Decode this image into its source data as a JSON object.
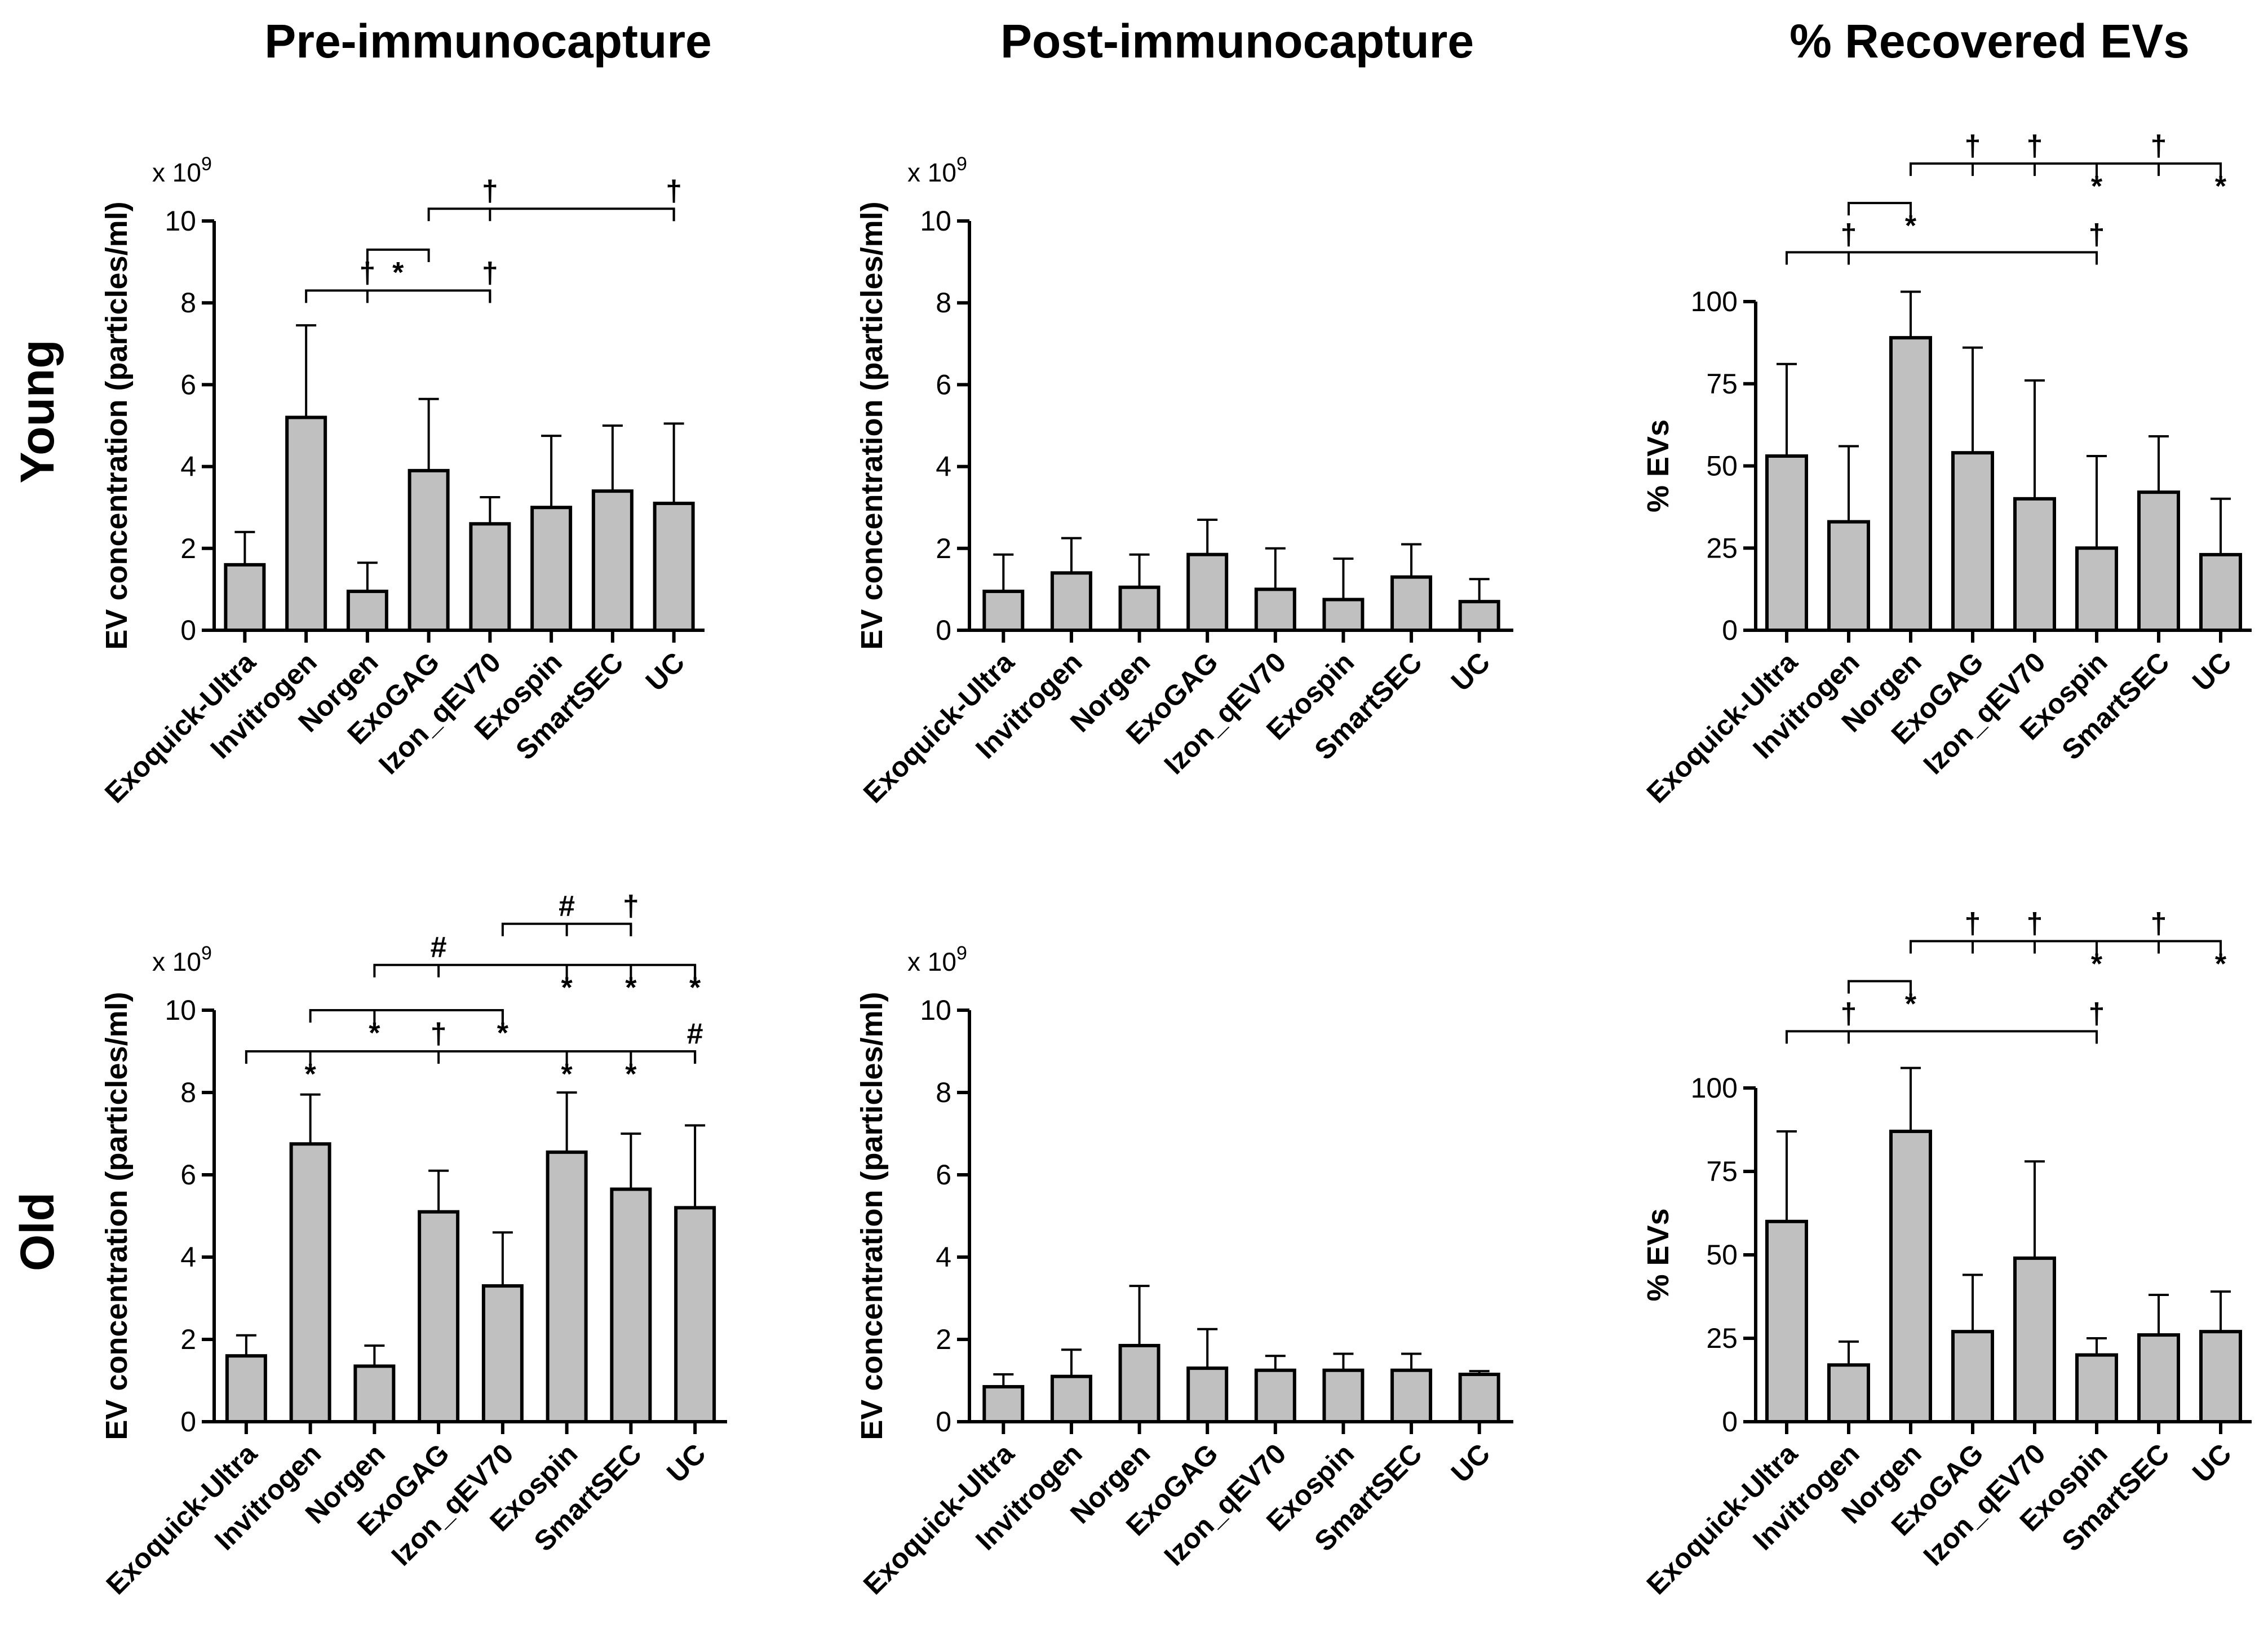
{
  "figure": {
    "column_titles": [
      "Pre-immunocapture",
      "Post-immunocapture",
      "% Recovered EVs"
    ],
    "row_labels": [
      "Young",
      "Old"
    ]
  },
  "chart_data": [
    {
      "id": "young-pre",
      "type": "bar",
      "row": "Young",
      "column": "Pre-immunocapture",
      "categories": [
        "Exoquick-Ultra",
        "Invitrogen",
        "Norgen",
        "ExoGAG",
        "Izon_qEV70",
        "Exospin",
        "SmartSEC",
        "UC"
      ],
      "values": [
        1.6,
        5.2,
        0.95,
        3.9,
        2.6,
        3.0,
        3.4,
        3.1
      ],
      "errors": [
        0.8,
        2.25,
        0.7,
        1.75,
        0.65,
        1.75,
        1.6,
        1.95
      ],
      "ylabel": "EV concentration (particles/ml)",
      "ymultiplier": "x 10",
      "ymultiplier_exp": "9",
      "ylim": [
        0,
        10
      ],
      "yticks": [
        "0",
        "2",
        "4",
        "6",
        "8",
        "10"
      ],
      "significance": [
        {
          "from": 2,
          "to": 3,
          "y": 9.3,
          "marks": [
            {
              "cat": 2.5,
              "symbol": "*"
            }
          ]
        },
        {
          "from": 1,
          "to": 4,
          "y": 8.3,
          "marks": [
            {
              "cat": 2,
              "symbol": "†"
            },
            {
              "cat": 4,
              "symbol": "†"
            }
          ]
        },
        {
          "from": 3,
          "to": 7,
          "y": 10.3,
          "marks": [
            {
              "cat": 4,
              "symbol": "†"
            },
            {
              "cat": 7,
              "symbol": "†"
            }
          ]
        }
      ]
    },
    {
      "id": "young-post",
      "type": "bar",
      "row": "Young",
      "column": "Post-immunocapture",
      "categories": [
        "Exoquick-Ultra",
        "Invitrogen",
        "Norgen",
        "ExoGAG",
        "Izon_qEV70",
        "Exospin",
        "SmartSEC",
        "UC"
      ],
      "values": [
        0.95,
        1.4,
        1.05,
        1.85,
        1.0,
        0.75,
        1.3,
        0.7
      ],
      "errors": [
        0.9,
        0.85,
        0.8,
        0.85,
        1.0,
        1.0,
        0.8,
        0.55
      ],
      "ylabel": "EV concentration (particles/ml)",
      "ymultiplier": "x 10",
      "ymultiplier_exp": "9",
      "ylim": [
        0,
        10
      ],
      "yticks": [
        "0",
        "2",
        "4",
        "6",
        "8",
        "10"
      ],
      "significance": []
    },
    {
      "id": "young-recovered",
      "type": "bar",
      "row": "Young",
      "column": "% Recovered EVs",
      "categories": [
        "Exoquick-Ultra",
        "Invitrogen",
        "Norgen",
        "ExoGAG",
        "Izon_qEV70",
        "Exospin",
        "SmartSEC",
        "UC"
      ],
      "values": [
        53,
        33,
        89,
        54,
        40,
        25,
        42,
        23
      ],
      "errors": [
        28,
        23,
        14,
        32,
        36,
        28,
        17,
        17
      ],
      "ylabel": "% EVs",
      "ymultiplier": "",
      "ymultiplier_exp": "",
      "ylim": [
        0,
        100
      ],
      "yticks": [
        "0",
        "25",
        "50",
        "75",
        "100"
      ],
      "significance": [
        {
          "from": 1,
          "to": 2,
          "y": 130,
          "marks": [
            {
              "cat": 2,
              "symbol": "*"
            }
          ]
        },
        {
          "from": 0,
          "to": 5,
          "y": 115,
          "marks": [
            {
              "cat": 1,
              "symbol": "†"
            },
            {
              "cat": 5,
              "symbol": "†"
            }
          ]
        },
        {
          "from": 2,
          "to": 7,
          "y": 142,
          "marks": [
            {
              "cat": 3,
              "symbol": "†"
            },
            {
              "cat": 4,
              "symbol": "†"
            },
            {
              "cat": 5,
              "symbol": "*"
            },
            {
              "cat": 6,
              "symbol": "†"
            },
            {
              "cat": 7,
              "symbol": "*"
            }
          ]
        }
      ]
    },
    {
      "id": "old-pre",
      "type": "bar",
      "row": "Old",
      "column": "Pre-immunocapture",
      "categories": [
        "Exoquick-Ultra",
        "Invitrogen",
        "Norgen",
        "ExoGAG",
        "Izon_qEV70",
        "Exospin",
        "SmartSEC",
        "UC"
      ],
      "values": [
        1.6,
        6.75,
        1.35,
        5.1,
        3.3,
        6.55,
        5.65,
        5.2
      ],
      "errors": [
        0.5,
        1.2,
        0.5,
        1.0,
        1.3,
        1.45,
        1.35,
        2.0
      ],
      "ylabel": "EV concentration (particles/ml)",
      "ymultiplier": "x 10",
      "ymultiplier_exp": "9",
      "ylim": [
        0,
        10
      ],
      "yticks": [
        "0",
        "2",
        "4",
        "6",
        "8",
        "10"
      ],
      "significance": [
        {
          "from": 0,
          "to": 7,
          "y": 9.0,
          "marks": [
            {
              "cat": 1,
              "symbol": "*"
            },
            {
              "cat": 3,
              "symbol": "†"
            },
            {
              "cat": 5,
              "symbol": "*"
            },
            {
              "cat": 6,
              "symbol": "*"
            },
            {
              "cat": 7,
              "symbol": "#"
            }
          ]
        },
        {
          "from": 1,
          "to": 4,
          "y": 10.0,
          "marks": [
            {
              "cat": 2,
              "symbol": "*"
            },
            {
              "cat": 4,
              "symbol": "*"
            }
          ]
        },
        {
          "from": 2,
          "to": 7,
          "y": 11.1,
          "marks": [
            {
              "cat": 3,
              "symbol": "#"
            },
            {
              "cat": 5,
              "symbol": "*"
            },
            {
              "cat": 6,
              "symbol": "*"
            },
            {
              "cat": 7,
              "symbol": "*"
            }
          ]
        },
        {
          "from": 4,
          "to": 6,
          "y": 12.1,
          "marks": [
            {
              "cat": 5,
              "symbol": "#"
            },
            {
              "cat": 6,
              "symbol": "†"
            }
          ]
        }
      ]
    },
    {
      "id": "old-post",
      "type": "bar",
      "row": "Old",
      "column": "Post-immunocapture",
      "categories": [
        "Exoquick-Ultra",
        "Invitrogen",
        "Norgen",
        "ExoGAG",
        "Izon_qEV70",
        "Exospin",
        "SmartSEC",
        "UC"
      ],
      "values": [
        0.85,
        1.1,
        1.85,
        1.3,
        1.25,
        1.25,
        1.25,
        1.15
      ],
      "errors": [
        0.3,
        0.65,
        1.45,
        0.95,
        0.35,
        0.4,
        0.4,
        0.08
      ],
      "ylabel": "EV concentration (particles/ml)",
      "ymultiplier": "x 10",
      "ymultiplier_exp": "9",
      "ylim": [
        0,
        10
      ],
      "yticks": [
        "0",
        "2",
        "4",
        "6",
        "8",
        "10"
      ],
      "significance": []
    },
    {
      "id": "old-recovered",
      "type": "bar",
      "row": "Old",
      "column": "% Recovered EVs",
      "categories": [
        "Exoquick-Ultra",
        "Invitrogen",
        "Norgen",
        "ExoGAG",
        "Izon_qEV70",
        "Exospin",
        "SmartSEC",
        "UC"
      ],
      "values": [
        60,
        17,
        87,
        27,
        49,
        20,
        26,
        27
      ],
      "errors": [
        27,
        7,
        19,
        17,
        29,
        5,
        12,
        12
      ],
      "ylabel": "% EVs",
      "ymultiplier": "",
      "ymultiplier_exp": "",
      "ylim": [
        0,
        100
      ],
      "yticks": [
        "0",
        "25",
        "50",
        "75",
        "100"
      ],
      "significance": [
        {
          "from": 1,
          "to": 2,
          "y": 132,
          "marks": [
            {
              "cat": 2,
              "symbol": "*"
            }
          ]
        },
        {
          "from": 0,
          "to": 5,
          "y": 117,
          "marks": [
            {
              "cat": 1,
              "symbol": "†"
            },
            {
              "cat": 5,
              "symbol": "†"
            }
          ]
        },
        {
          "from": 2,
          "to": 7,
          "y": 144,
          "marks": [
            {
              "cat": 3,
              "symbol": "†"
            },
            {
              "cat": 4,
              "symbol": "†"
            },
            {
              "cat": 5,
              "symbol": "*"
            },
            {
              "cat": 6,
              "symbol": "†"
            },
            {
              "cat": 7,
              "symbol": "*"
            }
          ]
        }
      ]
    }
  ]
}
